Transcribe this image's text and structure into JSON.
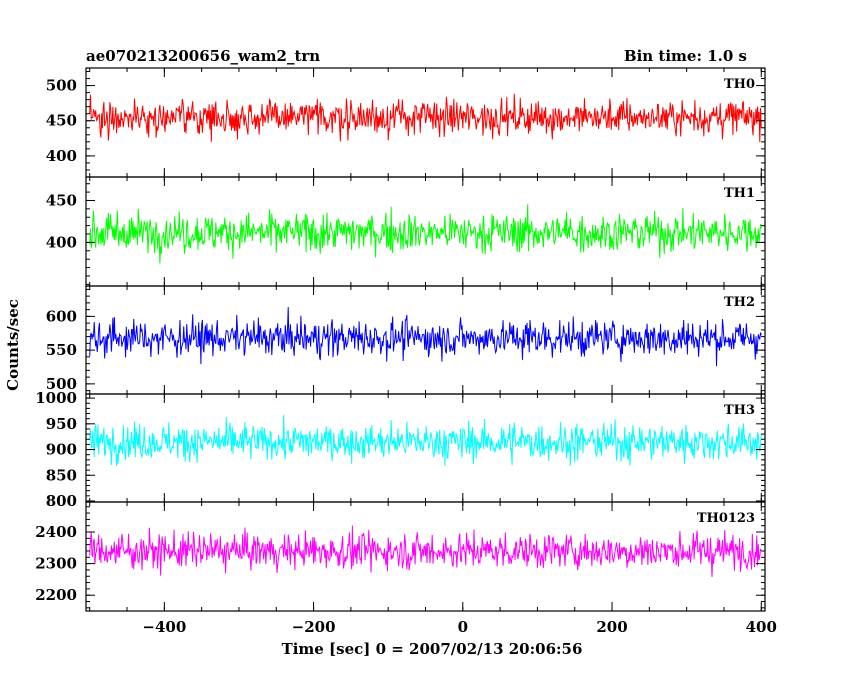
{
  "header": {
    "title": "ae070213200656_wam2_trn",
    "bin_time": "Bin time: 1.0 s"
  },
  "chart_data": {
    "type": "line",
    "title": "ae070213200656_wam2_trn",
    "subtitle": "Bin time: 1.0 s",
    "xlabel": "Time [sec] 0 = 2007/02/13 20:06:56",
    "ylabel": "Counts/sec",
    "xlim": [
      -505,
      405
    ],
    "xticks": [
      -400,
      -200,
      0,
      200,
      400
    ],
    "bin_time_s": 1.0,
    "x_start": -500,
    "x_end": 400,
    "series": [
      {
        "name": "TH0",
        "color": "#ff0000",
        "mean": 455,
        "spread": 21,
        "ylim": [
          370,
          525
        ],
        "yticks": [
          400,
          450,
          500
        ]
      },
      {
        "name": "TH1",
        "color": "#00ff00",
        "mean": 412,
        "spread": 20,
        "ylim": [
          348,
          478
        ],
        "yticks": [
          400,
          450
        ]
      },
      {
        "name": "TH2",
        "color": "#0000ff",
        "mean": 568,
        "spread": 23,
        "ylim": [
          485,
          645
        ],
        "yticks": [
          500,
          550,
          600
        ]
      },
      {
        "name": "TH3",
        "color": "#00ffff",
        "mean": 915,
        "spread": 30,
        "ylim": [
          798,
          1008
        ],
        "yticks": [
          800,
          850,
          900,
          950,
          1000
        ]
      },
      {
        "name": "TH0123",
        "color": "#ff00ff",
        "mean": 2340,
        "spread": 48,
        "ylim": [
          2150,
          2495
        ],
        "yticks": [
          2200,
          2300,
          2400
        ]
      }
    ],
    "grid": false,
    "legend": "panel labels at top-right of each panel"
  }
}
